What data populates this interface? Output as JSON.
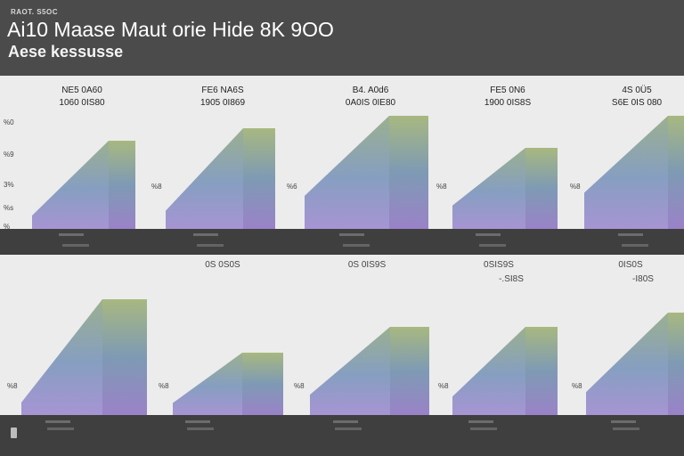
{
  "header": {
    "tag": "RAOT. S5OC",
    "title": "Ai10 Maase Maut orie Hide 8K 9OO",
    "subtitle": "Aese kessusse"
  },
  "colors": {
    "background": "#ececec",
    "strip": "#3f3f3f",
    "bar_top": "#a8b880",
    "bar_mid": "#7e9ab4",
    "bar_bottom": "#9a82c8"
  },
  "chart_data": [
    {
      "type": "area",
      "panel": "top",
      "y_ticks": [
        "%0",
        "%9",
        "3%",
        "%s",
        "%"
      ],
      "groups": [
        {
          "header_line1": "NE5 0A60",
          "header_line2": "1060 0IS80",
          "left_label": "",
          "base_value": 0.38,
          "top_value": 1.0
        },
        {
          "header_line1": "FE6 NA6S",
          "header_line2": "1905 0I869",
          "left_label": "%8",
          "base_value": 0.45,
          "top_value": 1.0
        },
        {
          "header_line1": "B4. A0d6",
          "header_line2": "0A0IS 0IE80",
          "left_label": "%6",
          "base_value": 0.73,
          "top_value": 1.0
        },
        {
          "header_line1": "FE5 0N6",
          "header_line2": "1900 0IS8S",
          "left_label": "%8",
          "base_value": 0.72,
          "top_value": 0.92
        },
        {
          "header_line1": "4S 0Ü5",
          "header_line2": "S6E 0IS 080",
          "left_label": "%8",
          "base_value": 0.8,
          "top_value": 1.0
        }
      ]
    },
    {
      "type": "area",
      "panel": "bottom",
      "groups": [
        {
          "header_line1": "",
          "header_line2": "",
          "left_label": "%8",
          "base_value": 0.31,
          "top_value": 1.0
        },
        {
          "header_line1": "0S 0S0S",
          "header_line2": "",
          "left_label": "%8",
          "base_value": 0.55,
          "top_value": 0.72
        },
        {
          "header_line1": "0S 0IS9S",
          "header_line2": "",
          "left_label": "%8",
          "base_value": 0.66,
          "top_value": 0.77
        },
        {
          "header_line1": "0SIS9S",
          "header_line2": "-.SI8S",
          "left_label": "%8",
          "base_value": 0.6,
          "top_value": 0.82
        },
        {
          "header_line1": "0IS0S",
          "header_line2": "-I80S",
          "left_label": "%8",
          "base_value": 0.64,
          "top_value": 0.85
        }
      ]
    }
  ]
}
